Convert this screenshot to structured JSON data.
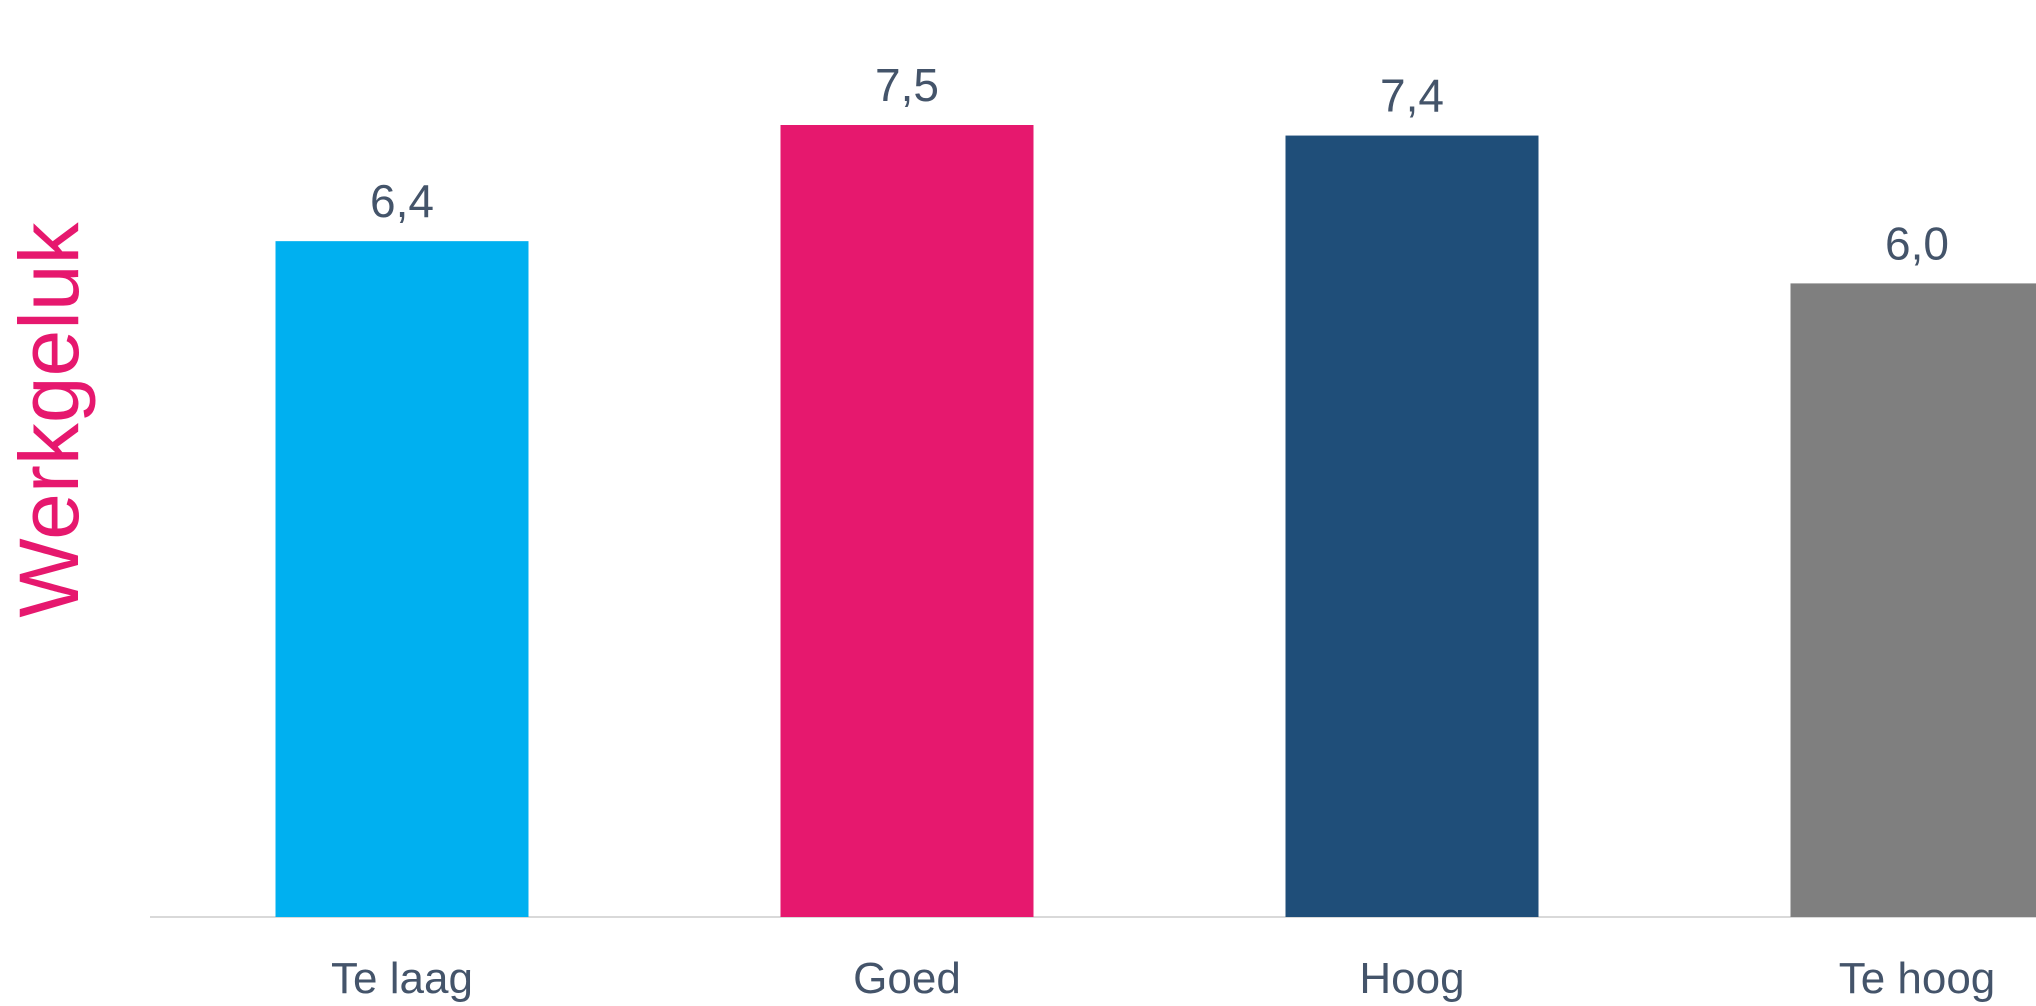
{
  "chart_data": {
    "type": "bar",
    "title": "",
    "xlabel": "",
    "ylabel": "Werkgeluk",
    "categories": [
      "Te laag",
      "Goed",
      "Hoog",
      "Te hoog"
    ],
    "values": [
      6.4,
      7.5,
      7.4,
      6.0
    ],
    "value_labels": [
      "6,4",
      "7,5",
      "7,4",
      "6,0"
    ],
    "colors": [
      "#00b0f0",
      "#e6186e",
      "#1f4e79",
      "#7f7f7f"
    ],
    "ylim": [
      0,
      8
    ],
    "grid": false,
    "legend": "none"
  }
}
